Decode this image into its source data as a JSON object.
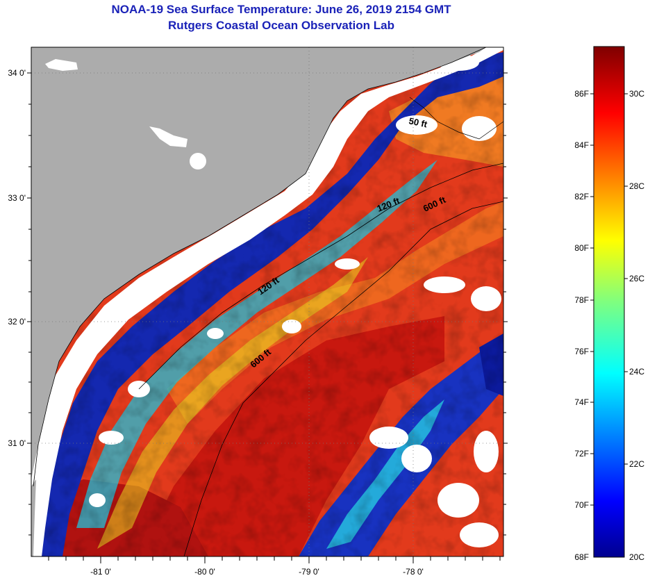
{
  "title": {
    "line1": "NOAA-19 Sea Surface Temperature:  June 26, 2019 2154 GMT",
    "line2": "Rutgers Coastal Ocean Observation Lab"
  },
  "map": {
    "lon_labels": [
      "-81 0'",
      "-80 0'",
      "-79 0'",
      "-78 0'"
    ],
    "lat_labels": [
      "34 0'",
      "33 0'",
      "32 0'",
      "31 0'"
    ],
    "contours": [
      "50 ft",
      "120 ft",
      "600 ft",
      "120 ft",
      "600 ft"
    ],
    "colors": {
      "land": "#acacac",
      "cloud": "#ffffff",
      "warm": "#e8321a",
      "hot": "#c41410",
      "cold": "#0a1aa0",
      "cyan": "#18c8e8"
    }
  },
  "colorbar": {
    "f_labels": [
      "86F",
      "84F",
      "82F",
      "80F",
      "78F",
      "76F",
      "74F",
      "72F",
      "70F",
      "68F"
    ],
    "c_labels": [
      "30C",
      "28C",
      "26C",
      "24C",
      "22C",
      "20C"
    ]
  }
}
